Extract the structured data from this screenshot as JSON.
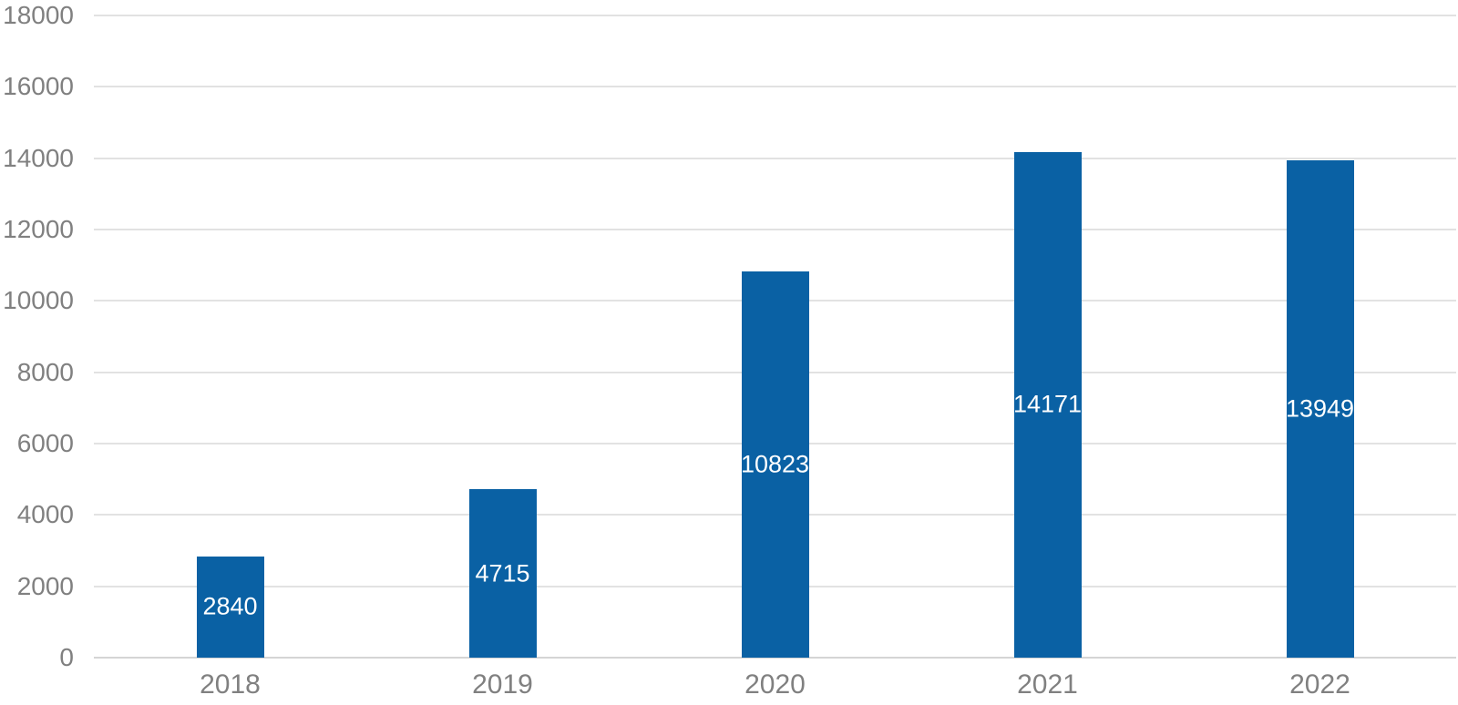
{
  "chart_data": {
    "type": "bar",
    "title": "",
    "xlabel": "",
    "ylabel": "",
    "categories": [
      "2018",
      "2019",
      "2020",
      "2021",
      "2022"
    ],
    "values": [
      2840,
      4715,
      10823,
      14171,
      13949
    ],
    "data_labels": [
      "2840",
      "4715",
      "10823",
      "14171",
      "13949"
    ],
    "yticks": [
      0,
      2000,
      4000,
      6000,
      8000,
      10000,
      12000,
      14000,
      16000,
      18000
    ],
    "ylim": [
      0,
      18000
    ],
    "ytick_step": 2000,
    "grid": "horizontal gridlines on",
    "legend": "none",
    "label_position": "inside-center",
    "colors": {
      "bar": "#0a61a4",
      "bar_label_text": "#ffffff",
      "axis_text": "#808080",
      "gridline": "#e2e2e2",
      "axis_line": "#d5d5d5",
      "background": "#ffffff"
    }
  }
}
